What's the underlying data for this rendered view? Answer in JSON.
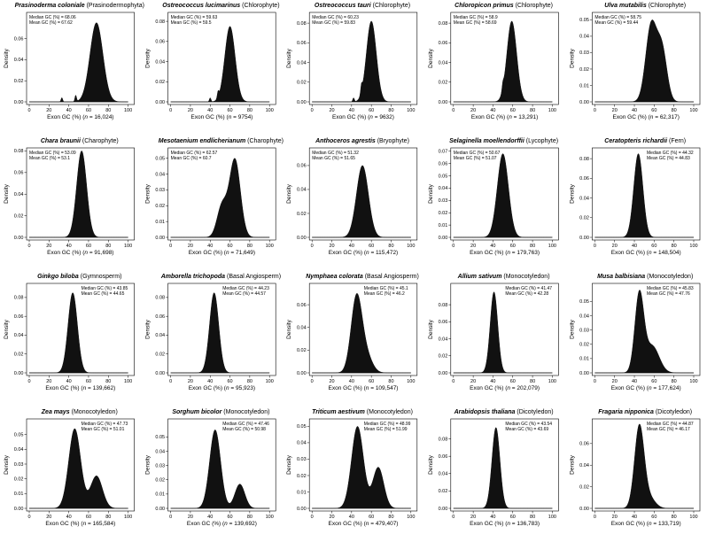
{
  "chart_data": [
    {
      "type": "area",
      "species": "Prasinoderma coloniale",
      "group": "(Prasinodermophyta)",
      "n": "16,024",
      "median": "68.06",
      "mean": "67.62",
      "median_val": 68,
      "sd": 6.5,
      "ymax_data": 0.075,
      "yticks": [
        "0.00",
        "0.02",
        "0.04",
        "0.06"
      ],
      "ytick_vals": [
        0,
        0.02,
        0.04,
        0.06
      ],
      "bumps": [
        [
          33,
          0.004
        ],
        [
          47,
          0.006
        ]
      ],
      "xrange": [
        0,
        100
      ],
      "xlabel": "Exon GC (%)",
      "ylabel": "Density"
    },
    {
      "type": "area",
      "species": "Ostreococcus lucimarinus",
      "group": "(Chlorophyte)",
      "n": "9754",
      "median": "59.63",
      "mean": "59.5",
      "median_val": 60,
      "sd": 5.2,
      "ymax_data": 0.075,
      "yticks": [
        "0.00",
        "0.02",
        "0.04",
        "0.06",
        "0.08"
      ],
      "ytick_vals": [
        0,
        0.02,
        0.04,
        0.06,
        0.08
      ],
      "ylim_top": 0.088,
      "bumps": [
        [
          40,
          0.004
        ],
        [
          48,
          0.006
        ]
      ],
      "xrange": [
        0,
        100
      ],
      "xlabel": "Exon GC (%)",
      "ylabel": "Density"
    },
    {
      "type": "area",
      "species": "Ostreococcus tauri",
      "group": "(Chlorophyte)",
      "n": "9632",
      "median": "60.23",
      "mean": "59.83",
      "median_val": 60,
      "sd": 5,
      "ymax_data": 0.082,
      "yticks": [
        "0.00",
        "0.02",
        "0.04",
        "0.06",
        "0.08"
      ],
      "ytick_vals": [
        0,
        0.02,
        0.04,
        0.06,
        0.08
      ],
      "ylim_top": 0.09,
      "bumps": [
        [
          42,
          0.004
        ],
        [
          50,
          0.008
        ]
      ],
      "xrange": [
        0,
        100
      ],
      "xlabel": "Exon GC (%)",
      "ylabel": "Density"
    },
    {
      "type": "area",
      "species": "Chloropicon primus",
      "group": "(Chlorophyte)",
      "n": "13,291",
      "median": "58.9",
      "mean": "58.69",
      "median_val": 59,
      "sd": 4.9,
      "ymax_data": 0.082,
      "yticks": [
        "0.00",
        "0.02",
        "0.04",
        "0.06",
        "0.08"
      ],
      "ytick_vals": [
        0,
        0.02,
        0.04,
        0.06,
        0.08
      ],
      "ylim_top": 0.09,
      "bumps": [
        [
          50,
          0.006
        ]
      ],
      "xrange": [
        0,
        100
      ],
      "xlabel": "Exon GC (%)",
      "ylabel": "Density"
    },
    {
      "type": "area",
      "species": "Ulva mutabilis",
      "group": "(Chlorophyte)",
      "n": "62,317",
      "median": "58.75",
      "mean": "59.44",
      "median_val": 57,
      "sd": 5.5,
      "ymax_data": 0.05,
      "second": [
        68,
        0.033,
        5
      ],
      "yticks": [
        "0.00",
        "0.01",
        "0.02",
        "0.03",
        "0.04",
        "0.05"
      ],
      "ytick_vals": [
        0,
        0.01,
        0.02,
        0.03,
        0.04,
        0.05
      ],
      "ylim_top": 0.054,
      "bumps": [],
      "xrange": [
        0,
        100
      ],
      "xlabel": "Exon GC (%)",
      "ylabel": "Density"
    },
    {
      "type": "area",
      "species": "Chara braunii",
      "group": "(Charophyte)",
      "n": "91,698",
      "median": "53.09",
      "mean": "53.1",
      "median_val": 53,
      "sd": 5,
      "ymax_data": 0.08,
      "yticks": [
        "0.00",
        "0.02",
        "0.04",
        "0.06",
        "0.08"
      ],
      "ytick_vals": [
        0,
        0.02,
        0.04,
        0.06,
        0.08
      ],
      "ylim_top": 0.082,
      "bumps": [],
      "xrange": [
        0,
        100
      ],
      "xlabel": "Exon GC (%)",
      "ylabel": "Density"
    },
    {
      "type": "area",
      "species": "Mesotaenium endlicherianum",
      "group": "(Charophyte)",
      "n": "71,649",
      "median": "62.57",
      "mean": "60.7",
      "median_val": 65,
      "sd": 5.5,
      "ymax_data": 0.05,
      "second": [
        52,
        0.02,
        5
      ],
      "yticks": [
        "0.00",
        "0.01",
        "0.02",
        "0.03",
        "0.04",
        "0.05"
      ],
      "ytick_vals": [
        0,
        0.01,
        0.02,
        0.03,
        0.04,
        0.05
      ],
      "ylim_top": 0.056,
      "bumps": [],
      "xrange": [
        0,
        100
      ],
      "xlabel": "Exon GC (%)",
      "ylabel": "Density"
    },
    {
      "type": "area",
      "species": "Anthoceros agrestis",
      "group": "(Bryophyte)",
      "n": "115,472",
      "median": "51.32",
      "mean": "51.65",
      "median_val": 51,
      "sd": 6,
      "ymax_data": 0.06,
      "yticks": [
        "0.00",
        "0.02",
        "0.04",
        "0.06"
      ],
      "ytick_vals": [
        0,
        0.02,
        0.04,
        0.06
      ],
      "ylim_top": 0.074,
      "bumps": [],
      "xrange": [
        0,
        100
      ],
      "xlabel": "Exon GC (%)",
      "ylabel": "Density"
    },
    {
      "type": "area",
      "species": "Selaginella moellendorffii",
      "group": "(Lycophyte)",
      "n": "179,763",
      "median": "50.67",
      "mean": "51.07",
      "median_val": 50,
      "sd": 5.6,
      "ymax_data": 0.068,
      "yticks": [
        "0.00",
        "0.01",
        "0.02",
        "0.03",
        "0.04",
        "0.05",
        "0.06",
        "0.07"
      ],
      "ytick_vals": [
        0,
        0.01,
        0.02,
        0.03,
        0.04,
        0.05,
        0.06,
        0.07
      ],
      "ylim_top": 0.072,
      "bumps": [],
      "xrange": [
        0,
        100
      ],
      "xlabel": "Exon GC (%)",
      "ylabel": "Density"
    },
    {
      "type": "area",
      "species": "Ceratopteris richardii",
      "group": "(Fern)",
      "n": "148,504",
      "median": "44.32",
      "mean": "44.83",
      "median_val": 44,
      "sd": 4.6,
      "ymax_data": 0.085,
      "yticks": [
        "0.00",
        "0.02",
        "0.04",
        "0.06",
        "0.08"
      ],
      "ytick_vals": [
        0,
        0.02,
        0.04,
        0.06,
        0.08
      ],
      "ylim_top": 0.09,
      "bumps": [],
      "xrange": [
        0,
        100
      ],
      "xlabel": "Exon GC (%)",
      "ylabel": "Density"
    },
    {
      "type": "area",
      "species": "Ginkgo biloba",
      "group": "(Gymnosperm)",
      "n": "139,662",
      "median": "43.85",
      "mean": "44.65",
      "median_val": 44,
      "sd": 4.7,
      "ymax_data": 0.085,
      "yticks": [
        "0.00",
        "0.02",
        "0.04",
        "0.06",
        "0.08"
      ],
      "ytick_vals": [
        0,
        0.02,
        0.04,
        0.06,
        0.08
      ],
      "ylim_top": 0.094,
      "bumps": [],
      "xrange": [
        0,
        100
      ],
      "xlabel": "Exon GC (%)",
      "ylabel": "Density"
    },
    {
      "type": "area",
      "species": "Amborella trichopoda",
      "group": "(Basal Angiosperm)",
      "n": "95,923",
      "median": "44.23",
      "mean": "44.57",
      "median_val": 44,
      "sd": 4.6,
      "ymax_data": 0.085,
      "yticks": [
        "0.00",
        "0.02",
        "0.04",
        "0.06",
        "0.08"
      ],
      "ytick_vals": [
        0,
        0.02,
        0.04,
        0.06,
        0.08
      ],
      "ylim_top": 0.094,
      "bumps": [],
      "xrange": [
        0,
        100
      ],
      "xlabel": "Exon GC (%)",
      "ylabel": "Density"
    },
    {
      "type": "area",
      "species": "Nymphaea colorata",
      "group": "(Basal Angiosperm)",
      "n": "109,547",
      "median": "45.1",
      "mean": "46.2",
      "median_val": 45,
      "sd": 5.5,
      "ymax_data": 0.07,
      "tail": [
        55,
        0.015,
        6
      ],
      "yticks": [
        "0.00",
        "0.02",
        "0.04",
        "0.06"
      ],
      "ytick_vals": [
        0,
        0.02,
        0.04,
        0.06
      ],
      "ylim_top": 0.078,
      "bumps": [],
      "xrange": [
        0,
        100
      ],
      "xlabel": "Exon GC (%)",
      "ylabel": "Density"
    },
    {
      "type": "area",
      "species": "Allium sativum",
      "group": "(Monocotyledon)",
      "n": "202,079",
      "median": "41.47",
      "mean": "42.28",
      "median_val": 41,
      "sd": 3.8,
      "ymax_data": 0.095,
      "yticks": [
        "0.00",
        "0.02",
        "0.04",
        "0.06",
        "0.08"
      ],
      "ytick_vals": [
        0,
        0.02,
        0.04,
        0.06,
        0.08
      ],
      "ylim_top": 0.104,
      "bumps": [],
      "xrange": [
        0,
        100
      ],
      "xlabel": "Exon GC (%)",
      "ylabel": "Density"
    },
    {
      "type": "area",
      "species": "Musa balbisiana",
      "group": "(Monocotyledon)",
      "n": "177,624",
      "median": "45.83",
      "mean": "47.76",
      "median_val": 45,
      "sd": 4.5,
      "ymax_data": 0.058,
      "tail": [
        58,
        0.02,
        7
      ],
      "yticks": [
        "0.00",
        "0.01",
        "0.02",
        "0.03",
        "0.04",
        "0.05"
      ],
      "ytick_vals": [
        0,
        0.01,
        0.02,
        0.03,
        0.04,
        0.05
      ],
      "ylim_top": 0.062,
      "bumps": [],
      "xrange": [
        0,
        100
      ],
      "xlabel": "Exon GC (%)",
      "ylabel": "Density"
    },
    {
      "type": "area",
      "species": "Zea mays",
      "group": "(Monocotyledon)",
      "n": "165,584",
      "median": "47.73",
      "mean": "51.01",
      "median_val": 46,
      "sd": 6,
      "ymax_data": 0.054,
      "second": [
        68,
        0.022,
        6
      ],
      "yticks": [
        "0.00",
        "0.01",
        "0.02",
        "0.03",
        "0.04",
        "0.05"
      ],
      "ytick_vals": [
        0,
        0.01,
        0.02,
        0.03,
        0.04,
        0.05
      ],
      "ylim_top": 0.06,
      "bumps": [],
      "xrange": [
        0,
        100
      ],
      "xlabel": "Exon GC (%)",
      "ylabel": "Density"
    },
    {
      "type": "area",
      "species": "Sorghum bicolor",
      "group": "(Monocotyledon)",
      "n": "139,692",
      "median": "47.46",
      "mean": "50.98",
      "median_val": 45,
      "sd": 5.5,
      "ymax_data": 0.055,
      "second": [
        70,
        0.017,
        5
      ],
      "yticks": [
        "0.00",
        "0.01",
        "0.02",
        "0.03",
        "0.04",
        "0.05"
      ],
      "ytick_vals": [
        0,
        0.01,
        0.02,
        0.03,
        0.04,
        0.05
      ],
      "ylim_top": 0.062,
      "bumps": [],
      "xrange": [
        0,
        100
      ],
      "xlabel": "Exon GC (%)",
      "ylabel": "Density"
    },
    {
      "type": "area",
      "species": "Triticum aestivum",
      "group": "(Monocotyledon)",
      "n": "479,407",
      "median": "48.99",
      "mean": "51.99",
      "median_val": 46,
      "sd": 6,
      "ymax_data": 0.05,
      "second": [
        67,
        0.025,
        5.5
      ],
      "yticks": [
        "0.00",
        "0.01",
        "0.02",
        "0.03",
        "0.04",
        "0.05"
      ],
      "ytick_vals": [
        0,
        0.01,
        0.02,
        0.03,
        0.04,
        0.05
      ],
      "ylim_top": 0.054,
      "bumps": [],
      "xrange": [
        0,
        100
      ],
      "xlabel": "Exon GC (%)",
      "ylabel": "Density"
    },
    {
      "type": "area",
      "species": "Arabidopsis thaliana",
      "group": "(Dicotyledon)",
      "n": "136,783",
      "median": "43.54",
      "mean": "43.69",
      "median_val": 43,
      "sd": 4,
      "ymax_data": 0.093,
      "yticks": [
        "0.00",
        "0.02",
        "0.04",
        "0.06",
        "0.08"
      ],
      "ytick_vals": [
        0,
        0.02,
        0.04,
        0.06,
        0.08
      ],
      "ylim_top": 0.102,
      "bumps": [],
      "xrange": [
        0,
        100
      ],
      "xlabel": "Exon GC (%)",
      "ylabel": "Density"
    },
    {
      "type": "area",
      "species": "Fragaria nipponica",
      "group": "(Dicotyledon)",
      "n": "133,719",
      "median": "44.87",
      "mean": "46.17",
      "median_val": 45,
      "sd": 4.8,
      "ymax_data": 0.078,
      "tail": [
        55,
        0.01,
        6
      ],
      "yticks": [
        "0.00",
        "0.02",
        "0.04",
        "0.06"
      ],
      "ytick_vals": [
        0,
        0.02,
        0.04,
        0.06
      ],
      "ylim_top": 0.082,
      "bumps": [],
      "xrange": [
        0,
        100
      ],
      "xlabel": "Exon GC (%)",
      "ylabel": "Density"
    }
  ],
  "labels": {
    "median_prefix": "Median GC (%) = ",
    "mean_prefix": "Mean GC (%) = ",
    "xtick_labels": [
      "0",
      "20",
      "40",
      "60",
      "80",
      "100"
    ],
    "n_prefix": "n",
    "n_eq": " = "
  },
  "colors": {
    "fill": "#111111",
    "axis": "#000000",
    "bg": "#ffffff"
  }
}
